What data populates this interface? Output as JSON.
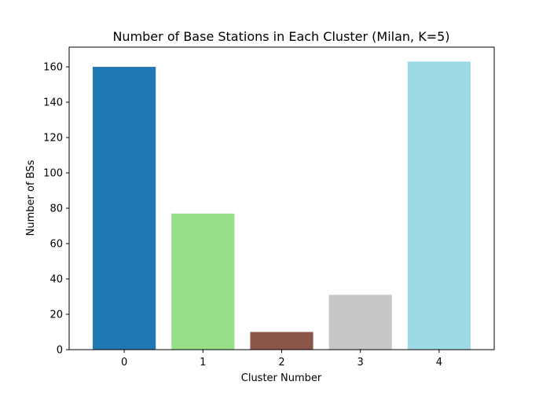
{
  "chart_data": {
    "type": "bar",
    "title": "Number of Base Stations in Each Cluster (Milan, K=5)",
    "xlabel": "Cluster Number",
    "ylabel": "Number of BSs",
    "categories": [
      "0",
      "1",
      "2",
      "3",
      "4"
    ],
    "values": [
      160,
      77,
      10,
      31,
      163
    ],
    "colors": [
      "#1f77b4",
      "#98df8a",
      "#8c564b",
      "#c7c7c7",
      "#9edae5"
    ],
    "ylim": [
      0,
      171.15
    ],
    "yticks": [
      0,
      20,
      40,
      60,
      80,
      100,
      120,
      140,
      160
    ],
    "grid": false,
    "legend": "none"
  }
}
